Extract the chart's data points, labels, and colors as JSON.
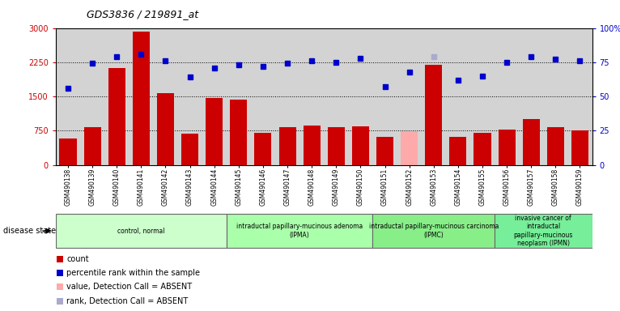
{
  "title": "GDS3836 / 219891_at",
  "samples": [
    "GSM490138",
    "GSM490139",
    "GSM490140",
    "GSM490141",
    "GSM490142",
    "GSM490143",
    "GSM490144",
    "GSM490145",
    "GSM490146",
    "GSM490147",
    "GSM490148",
    "GSM490149",
    "GSM490150",
    "GSM490151",
    "GSM490152",
    "GSM490153",
    "GSM490154",
    "GSM490155",
    "GSM490156",
    "GSM490157",
    "GSM490158",
    "GSM490159"
  ],
  "bar_values": [
    580,
    830,
    2120,
    2920,
    1580,
    680,
    1460,
    1430,
    700,
    820,
    870,
    820,
    850,
    620,
    730,
    2200,
    620,
    710,
    780,
    1000,
    820,
    760
  ],
  "absent_bar_indices": [
    14
  ],
  "absent_rank_indices": [
    15
  ],
  "bar_color": "#cc0000",
  "absent_bar_color": "#ffaaaa",
  "absent_rank_color": "#aaaacc",
  "rank_values": [
    56,
    74,
    79,
    81,
    76,
    64,
    71,
    73,
    72,
    74,
    76,
    75,
    78,
    57,
    68,
    79,
    62,
    65,
    75,
    79,
    77,
    76
  ],
  "ylim_left": [
    0,
    3000
  ],
  "ylim_right": [
    0,
    100
  ],
  "yticks_left": [
    0,
    750,
    1500,
    2250,
    3000
  ],
  "ytick_labels_left": [
    "0",
    "750",
    "1500",
    "2250",
    "3000"
  ],
  "yticks_right": [
    0,
    25,
    50,
    75,
    100
  ],
  "ytick_labels_right": [
    "0",
    "25",
    "50",
    "75",
    "100%"
  ],
  "groups": [
    {
      "label": "control, normal",
      "start": 0,
      "end": 7,
      "color": "#ccffcc"
    },
    {
      "label": "intraductal papillary-mucinous adenoma\n(IPMA)",
      "start": 7,
      "end": 13,
      "color": "#aaffaa"
    },
    {
      "label": "intraductal papillary-mucinous carcinoma\n(IPMC)",
      "start": 13,
      "end": 18,
      "color": "#88ee88"
    },
    {
      "label": "invasive cancer of\nintraductal\npapillary-mucinous\nneoplasm (IPMN)",
      "start": 18,
      "end": 22,
      "color": "#77ee99"
    }
  ],
  "disease_state_label": "disease state",
  "legend_items": [
    {
      "label": "count",
      "color": "#cc0000"
    },
    {
      "label": "percentile rank within the sample",
      "color": "#0000cc"
    },
    {
      "label": "value, Detection Call = ABSENT",
      "color": "#ffaaaa"
    },
    {
      "label": "rank, Detection Call = ABSENT",
      "color": "#aaaacc"
    }
  ],
  "background_color": "#d3d3d3",
  "plot_bg_color": "#d3d3d3",
  "rank_color": "#0000cc",
  "rank_marker_size": 5
}
